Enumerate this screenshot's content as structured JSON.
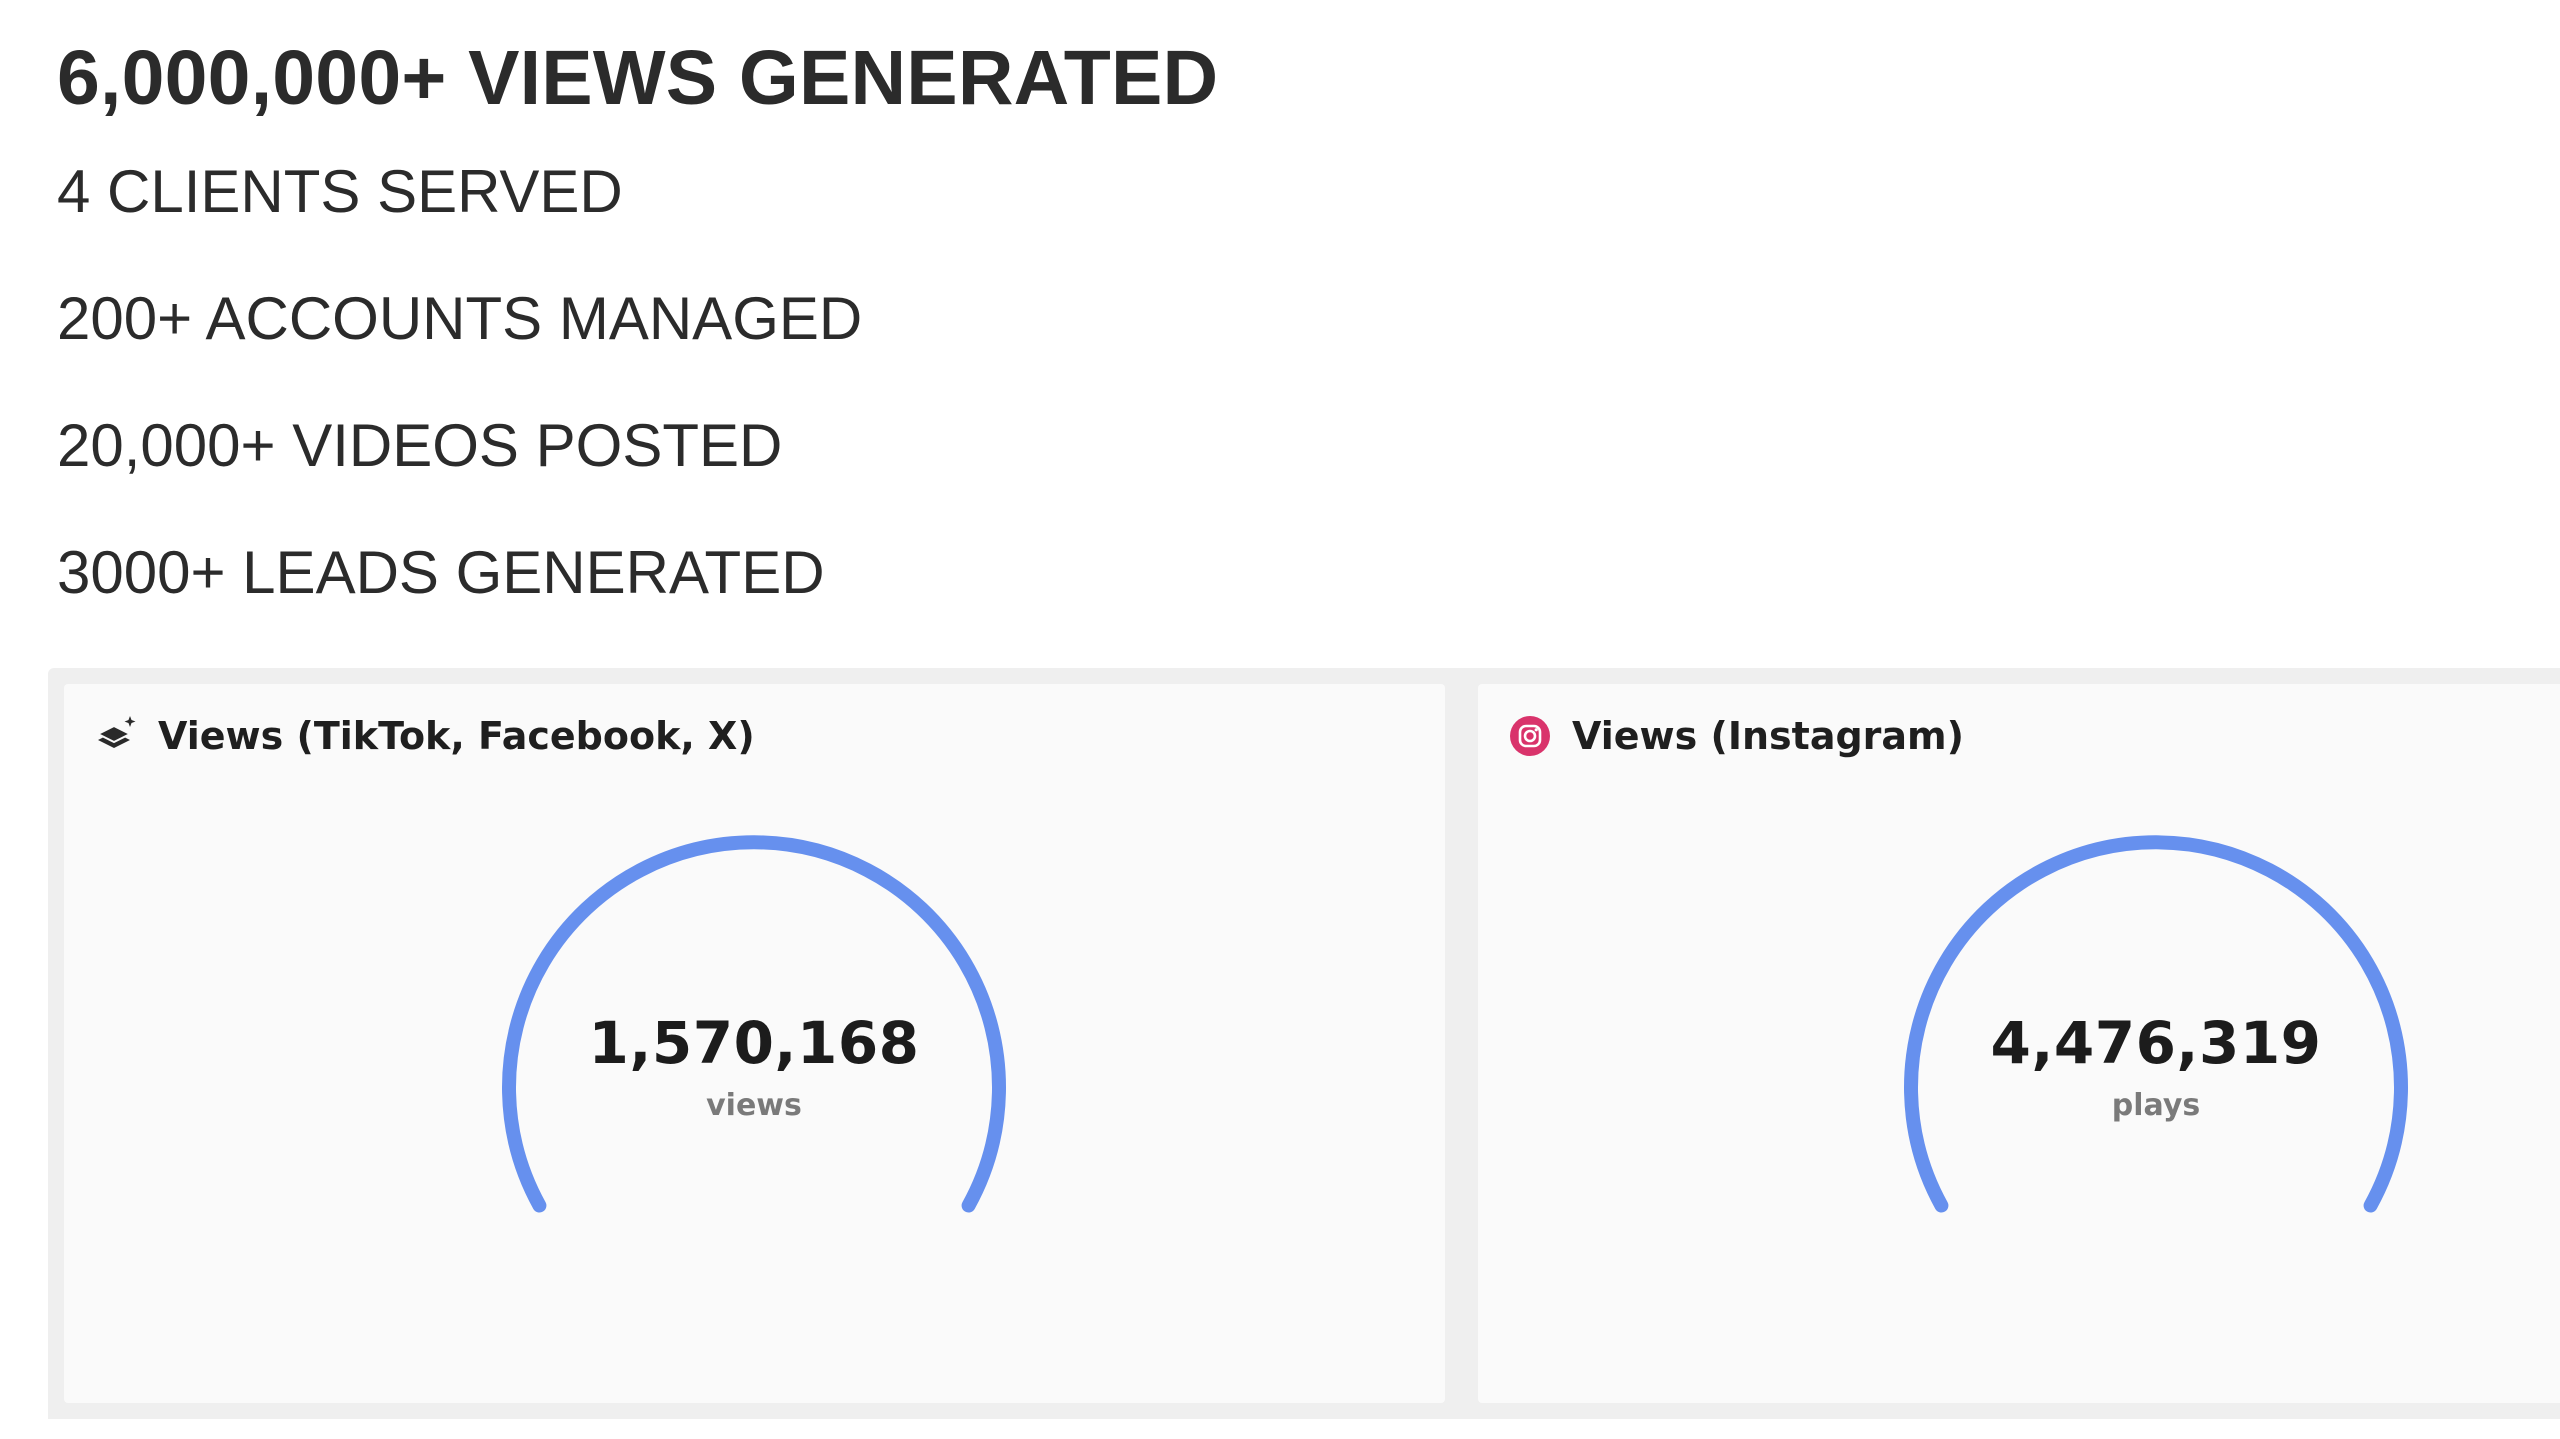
{
  "stats": {
    "headline": "6,000,000+ VIEWS GENERATED",
    "clients": "4 CLIENTS SERVED",
    "accounts": "200+ ACCOUNTS MANAGED",
    "videos": "20,000+ VIDEOS POSTED",
    "leads": "3000+ LEADS GENERATED"
  },
  "widgets": [
    {
      "title": "Views (TikTok, Facebook, X)",
      "icon": "layers-sparkle-icon",
      "value": "1,570,168",
      "unit": "views",
      "gauge_fill": 1.0
    },
    {
      "title": "Views (Instagram)",
      "icon": "instagram-icon",
      "value": "4,476,319",
      "unit": "plays",
      "gauge_fill": 1.0
    }
  ],
  "colors": {
    "gauge": "#6690ee",
    "instagram": "#d9336b",
    "text": "#2b2b2b"
  }
}
